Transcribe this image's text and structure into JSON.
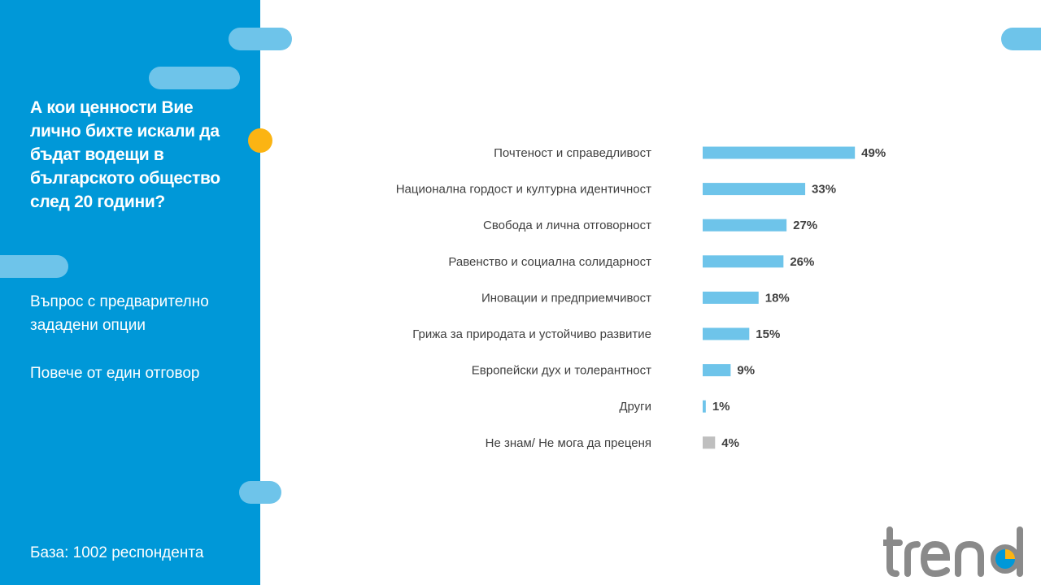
{
  "left_panel": {
    "question": "А кои ценности Вие лично бихте искали да бъдат водещи в българското общество след 20 години?",
    "note_1": "Въпрос с предварително зададени опции",
    "note_2": "Повече от един отговор",
    "base": "База:  1002 респондента"
  },
  "colors": {
    "panel": "#0098d8",
    "accent_pill": "#6ec4ea",
    "dot": "#fbb413",
    "bar": "#6ec4ea",
    "bar_dontknow": "#bfbfbf",
    "logo_grey": "#8a8a8a",
    "logo_blue": "#0098d8",
    "logo_yellow": "#fbb413"
  },
  "logo": {
    "text": "trend"
  },
  "chart_data": {
    "type": "bar",
    "orientation": "horizontal",
    "categories": [
      "Почтеност и справедливост",
      "Национална гордост и културна идентичност",
      "Свобода и лична отговорност",
      "Равенство и социална солидарност",
      "Иновации и предприемчивост",
      "Грижа за природата и устойчиво развитие",
      "Европейски дух и толерантност",
      "Други",
      "Не знам/ Не мога да преценя"
    ],
    "values": [
      49,
      33,
      27,
      26,
      18,
      15,
      9,
      1,
      4
    ],
    "value_labels": [
      "49%",
      "33%",
      "27%",
      "26%",
      "18%",
      "15%",
      "9%",
      "1%",
      "4%"
    ],
    "bar_colors": [
      "#6ec4ea",
      "#6ec4ea",
      "#6ec4ea",
      "#6ec4ea",
      "#6ec4ea",
      "#6ec4ea",
      "#6ec4ea",
      "#6ec4ea",
      "#bfbfbf"
    ],
    "unit": "%",
    "grid": false,
    "legend": false
  }
}
